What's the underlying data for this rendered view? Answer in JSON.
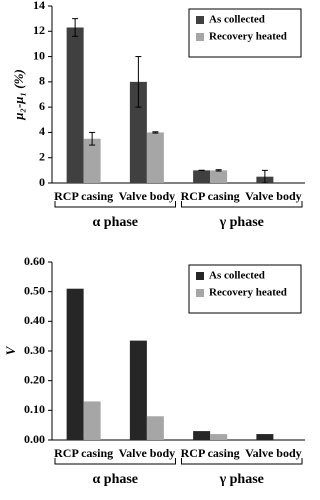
{
  "chart_data": [
    {
      "type": "bar",
      "ylabel": "μ₂-μ₁ (%)",
      "categories": [
        "RCP casing",
        "Valve body",
        "RCP casing",
        "Valve body"
      ],
      "group_labels": [
        "α phase",
        "γ phase"
      ],
      "series": [
        {
          "name": "As collected",
          "color": "#404040",
          "values": [
            12.3,
            8.0,
            1.0,
            0.5
          ],
          "errors": [
            0.7,
            2.0,
            0,
            0.5
          ]
        },
        {
          "name": "Recovery heated",
          "color": "#a6a6a6",
          "values": [
            3.5,
            4.0,
            1.0,
            0
          ],
          "errors": [
            0.5,
            0.05,
            0.05,
            0
          ]
        }
      ],
      "ylim": [
        0,
        14
      ],
      "yticks": [
        0,
        2,
        4,
        6,
        8,
        10,
        12,
        14
      ],
      "legend": "upper right"
    },
    {
      "type": "bar",
      "ylabel": "V",
      "categories": [
        "RCP casing",
        "Valve body",
        "RCP casing",
        "Valve body"
      ],
      "group_labels": [
        "α phase",
        "γ phase"
      ],
      "series": [
        {
          "name": "As collected",
          "color": "#262626",
          "values": [
            0.51,
            0.335,
            0.03,
            0.02
          ]
        },
        {
          "name": "Recovery heated",
          "color": "#a6a6a6",
          "values": [
            0.13,
            0.08,
            0.02,
            0
          ]
        }
      ],
      "ylim": [
        0,
        0.6
      ],
      "yticks": [
        {
          "value": 0,
          "label": "0.00"
        },
        {
          "value": 0.1,
          "label": "0.10"
        },
        {
          "value": 0.2,
          "label": "0.20"
        },
        {
          "value": 0.3,
          "label": "0.30"
        },
        {
          "value": 0.4,
          "label": "0.40"
        },
        {
          "value": 0.5,
          "label": "0.50"
        },
        {
          "value": 0.6,
          "label": "0.60"
        }
      ],
      "legend": "upper right"
    }
  ]
}
